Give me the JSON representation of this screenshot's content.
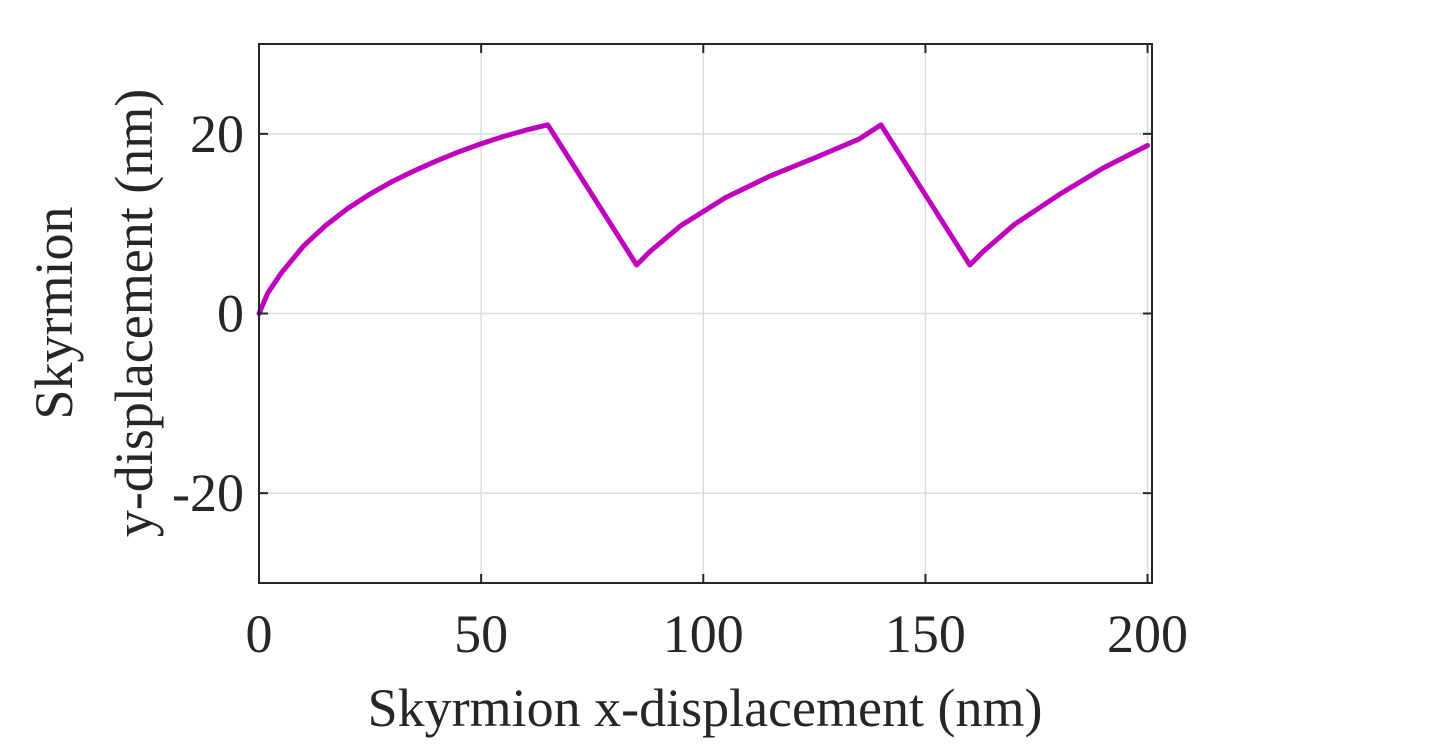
{
  "chart_data": {
    "type": "line",
    "title": "",
    "xlabel": "Skyrmion x-displacement (nm)",
    "ylabel_lines": [
      "Skyrmion",
      "y-displacement (nm)"
    ],
    "xlim": [
      0,
      201
    ],
    "ylim": [
      -30,
      30
    ],
    "xticks": [
      0,
      50,
      100,
      150,
      200
    ],
    "yticks": [
      -20,
      0,
      20
    ],
    "grid": true,
    "box": true,
    "legend": null,
    "series": [
      {
        "color": "#bf00bf",
        "x": [
          0,
          2,
          5,
          10,
          15,
          20,
          25,
          30,
          35,
          40,
          45,
          50,
          55,
          60,
          65,
          85,
          88,
          95,
          105,
          115,
          125,
          135,
          140,
          160,
          163,
          170,
          180,
          190,
          200
        ],
        "y": [
          0,
          2.3,
          4.5,
          7.5,
          9.8,
          11.7,
          13.3,
          14.7,
          15.9,
          17.0,
          18.0,
          18.9,
          19.7,
          20.4,
          21.0,
          5.4,
          6.9,
          9.8,
          12.9,
          15.3,
          17.3,
          19.4,
          21.0,
          5.4,
          6.9,
          9.9,
          13.2,
          16.2,
          18.7
        ]
      }
    ]
  }
}
